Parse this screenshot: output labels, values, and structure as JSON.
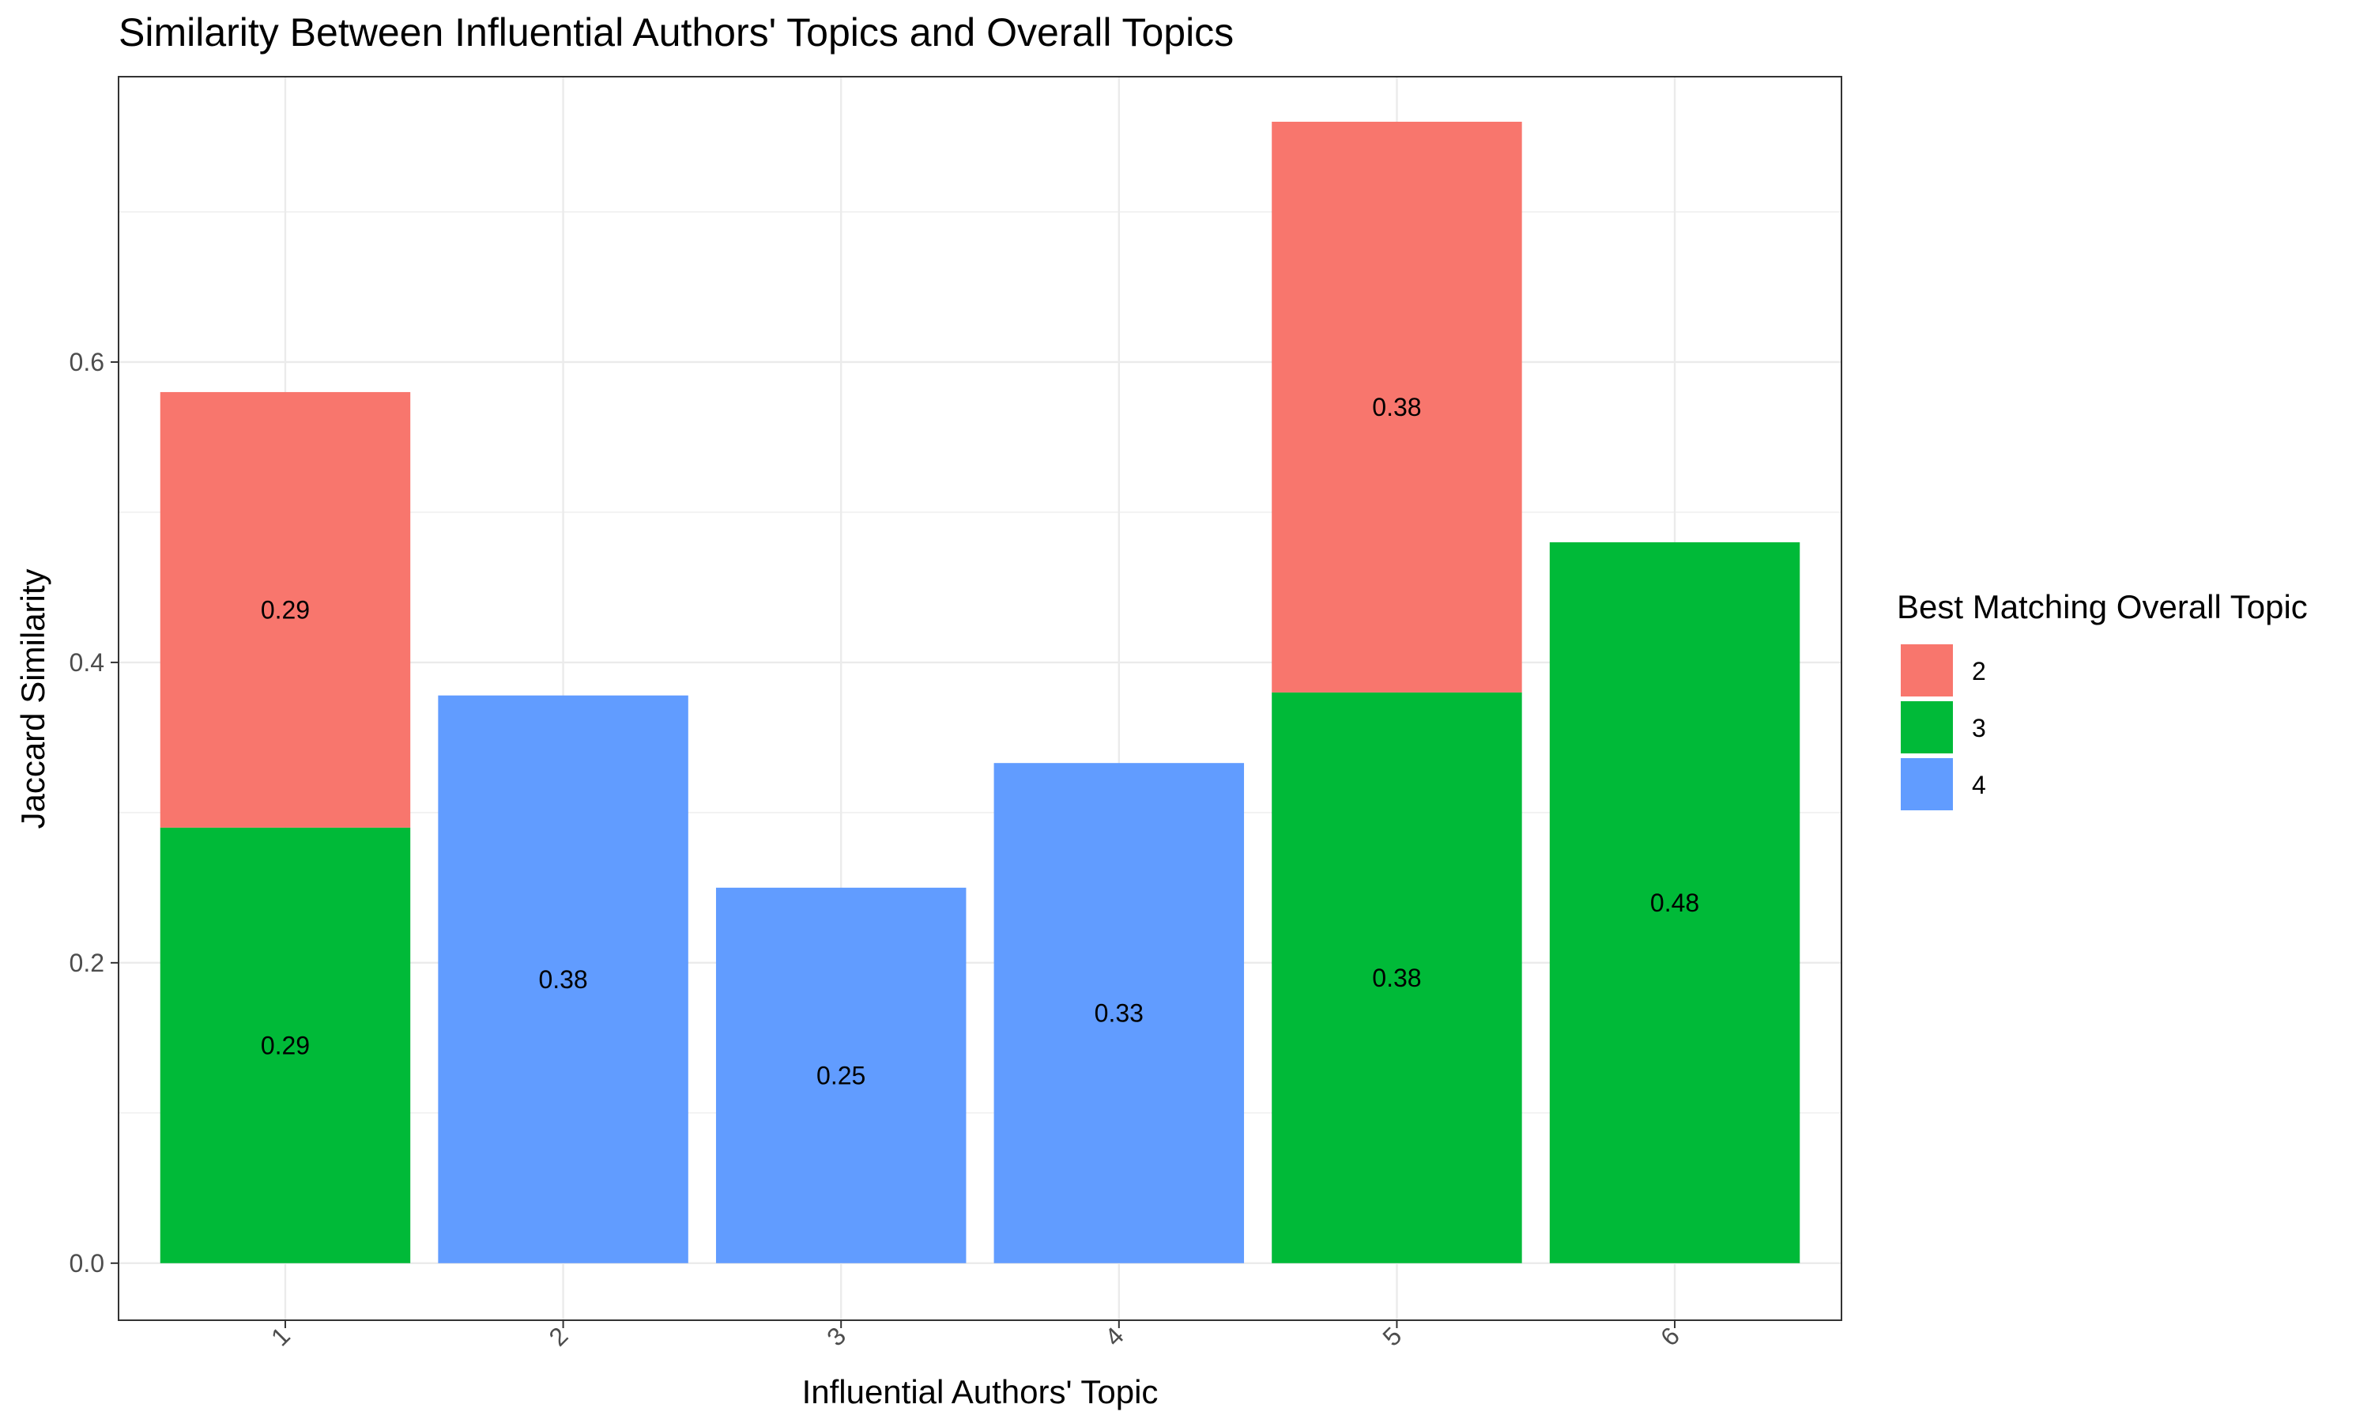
{
  "chart_data": {
    "type": "bar",
    "stacked": true,
    "title": "Similarity Between Influential Authors' Topics and Overall Topics",
    "xlabel": "Influential Authors' Topic",
    "ylabel": "Jaccard Similarity",
    "categories": [
      "1",
      "2",
      "3",
      "4",
      "5",
      "6"
    ],
    "ylim": [
      -0.038,
      0.79
    ],
    "yticks": [
      0.0,
      0.2,
      0.4,
      0.6
    ],
    "ytick_labels": [
      "0.0",
      "0.2",
      "0.4",
      "0.6"
    ],
    "grid": true,
    "legend": {
      "title": "Best Matching Overall Topic",
      "position": "right"
    },
    "series": [
      {
        "name": "3",
        "color": "#00BA38",
        "values": [
          0.29,
          null,
          null,
          null,
          0.38,
          0.48
        ],
        "labels": [
          "0.29",
          null,
          null,
          null,
          "0.38",
          "0.48"
        ]
      },
      {
        "name": "2",
        "color": "#F8766D",
        "values": [
          0.29,
          null,
          null,
          null,
          0.38,
          null
        ],
        "labels": [
          "0.29",
          null,
          null,
          null,
          "0.38",
          null
        ]
      },
      {
        "name": "4",
        "color": "#619CFF",
        "values": [
          null,
          0.378,
          0.25,
          0.333,
          null,
          null
        ],
        "labels": [
          null,
          "0.38",
          "0.25",
          "0.33",
          null,
          null
        ]
      }
    ],
    "legend_order": [
      "2",
      "3",
      "4"
    ]
  }
}
